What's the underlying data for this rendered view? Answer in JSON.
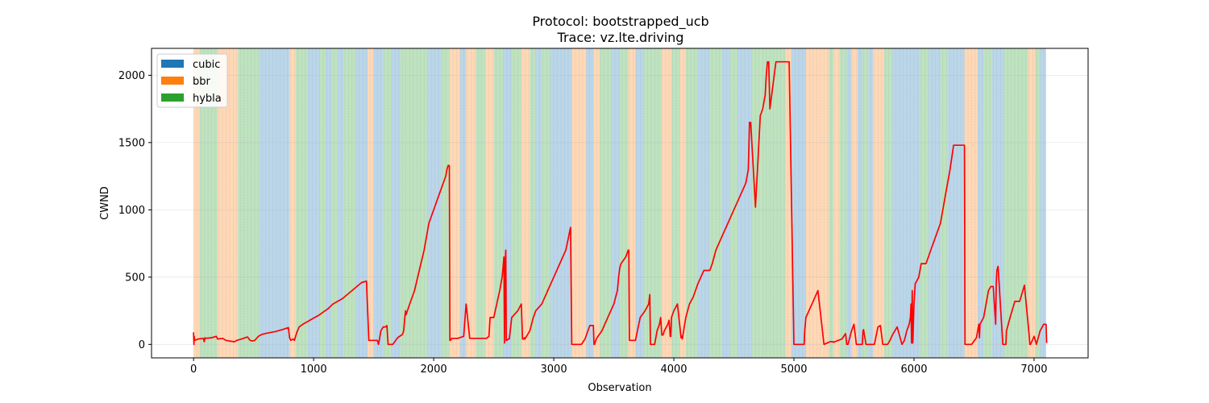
{
  "chart_data": {
    "type": "line",
    "title": "Protocol: bootstrapped_ucb",
    "subtitle": "Trace: vz.lte.driving",
    "xlabel": "Observation",
    "ylabel": "CWND",
    "xlim": [
      -350,
      7450
    ],
    "ylim": [
      -100,
      2200
    ],
    "xticks": [
      0,
      1000,
      2000,
      3000,
      4000,
      5000,
      6000,
      7000
    ],
    "yticks": [
      0,
      500,
      1000,
      1500,
      2000
    ],
    "grid": "horizontal",
    "legend_position": "top-left",
    "protocols": [
      {
        "name": "cubic",
        "color": "#1f77b4"
      },
      {
        "name": "bbr",
        "color": "#ff7f0e"
      },
      {
        "name": "hybla",
        "color": "#2ca02c"
      }
    ],
    "line_color": "#ff0000",
    "regions": [
      {
        "start": 0,
        "end": 50,
        "protocol": "bbr"
      },
      {
        "start": 50,
        "end": 200,
        "protocol": "hybla"
      },
      {
        "start": 200,
        "end": 370,
        "protocol": "bbr"
      },
      {
        "start": 370,
        "end": 550,
        "protocol": "hybla"
      },
      {
        "start": 550,
        "end": 800,
        "protocol": "cubic"
      },
      {
        "start": 800,
        "end": 850,
        "protocol": "bbr"
      },
      {
        "start": 850,
        "end": 950,
        "protocol": "hybla"
      },
      {
        "start": 950,
        "end": 1050,
        "protocol": "cubic"
      },
      {
        "start": 1050,
        "end": 1100,
        "protocol": "hybla"
      },
      {
        "start": 1100,
        "end": 1150,
        "protocol": "cubic"
      },
      {
        "start": 1150,
        "end": 1200,
        "protocol": "hybla"
      },
      {
        "start": 1200,
        "end": 1250,
        "protocol": "cubic"
      },
      {
        "start": 1250,
        "end": 1350,
        "protocol": "hybla"
      },
      {
        "start": 1350,
        "end": 1450,
        "protocol": "cubic"
      },
      {
        "start": 1450,
        "end": 1500,
        "protocol": "bbr"
      },
      {
        "start": 1500,
        "end": 1580,
        "protocol": "cubic"
      },
      {
        "start": 1580,
        "end": 1650,
        "protocol": "hybla"
      },
      {
        "start": 1650,
        "end": 1720,
        "protocol": "cubic"
      },
      {
        "start": 1720,
        "end": 1950,
        "protocol": "hybla"
      },
      {
        "start": 1950,
        "end": 2060,
        "protocol": "cubic"
      },
      {
        "start": 2060,
        "end": 2130,
        "protocol": "hybla"
      },
      {
        "start": 2130,
        "end": 2220,
        "protocol": "bbr"
      },
      {
        "start": 2220,
        "end": 2270,
        "protocol": "cubic"
      },
      {
        "start": 2270,
        "end": 2350,
        "protocol": "bbr"
      },
      {
        "start": 2350,
        "end": 2430,
        "protocol": "hybla"
      },
      {
        "start": 2430,
        "end": 2500,
        "protocol": "bbr"
      },
      {
        "start": 2500,
        "end": 2580,
        "protocol": "hybla"
      },
      {
        "start": 2580,
        "end": 2650,
        "protocol": "cubic"
      },
      {
        "start": 2650,
        "end": 2730,
        "protocol": "hybla"
      },
      {
        "start": 2730,
        "end": 2800,
        "protocol": "bbr"
      },
      {
        "start": 2800,
        "end": 2850,
        "protocol": "hybla"
      },
      {
        "start": 2850,
        "end": 2900,
        "protocol": "cubic"
      },
      {
        "start": 2900,
        "end": 2970,
        "protocol": "hybla"
      },
      {
        "start": 2970,
        "end": 3150,
        "protocol": "cubic"
      },
      {
        "start": 3150,
        "end": 3270,
        "protocol": "bbr"
      },
      {
        "start": 3270,
        "end": 3330,
        "protocol": "cubic"
      },
      {
        "start": 3330,
        "end": 3380,
        "protocol": "bbr"
      },
      {
        "start": 3380,
        "end": 3480,
        "protocol": "hybla"
      },
      {
        "start": 3480,
        "end": 3550,
        "protocol": "cubic"
      },
      {
        "start": 3550,
        "end": 3620,
        "protocol": "hybla"
      },
      {
        "start": 3620,
        "end": 3680,
        "protocol": "bbr"
      },
      {
        "start": 3680,
        "end": 3750,
        "protocol": "cubic"
      },
      {
        "start": 3750,
        "end": 3900,
        "protocol": "hybla"
      },
      {
        "start": 3900,
        "end": 3980,
        "protocol": "bbr"
      },
      {
        "start": 3980,
        "end": 4050,
        "protocol": "hybla"
      },
      {
        "start": 4050,
        "end": 4100,
        "protocol": "bbr"
      },
      {
        "start": 4100,
        "end": 4200,
        "protocol": "hybla"
      },
      {
        "start": 4200,
        "end": 4300,
        "protocol": "cubic"
      },
      {
        "start": 4300,
        "end": 4400,
        "protocol": "hybla"
      },
      {
        "start": 4400,
        "end": 4470,
        "protocol": "cubic"
      },
      {
        "start": 4470,
        "end": 4530,
        "protocol": "hybla"
      },
      {
        "start": 4530,
        "end": 4650,
        "protocol": "cubic"
      },
      {
        "start": 4650,
        "end": 4720,
        "protocol": "hybla"
      },
      {
        "start": 4720,
        "end": 4930,
        "protocol": "hybla"
      },
      {
        "start": 4930,
        "end": 4980,
        "protocol": "bbr"
      },
      {
        "start": 4980,
        "end": 5100,
        "protocol": "cubic"
      },
      {
        "start": 5100,
        "end": 5290,
        "protocol": "bbr"
      },
      {
        "start": 5290,
        "end": 5330,
        "protocol": "hybla"
      },
      {
        "start": 5330,
        "end": 5380,
        "protocol": "bbr"
      },
      {
        "start": 5380,
        "end": 5440,
        "protocol": "hybla"
      },
      {
        "start": 5440,
        "end": 5480,
        "protocol": "cubic"
      },
      {
        "start": 5480,
        "end": 5530,
        "protocol": "bbr"
      },
      {
        "start": 5530,
        "end": 5570,
        "protocol": "cubic"
      },
      {
        "start": 5570,
        "end": 5620,
        "protocol": "hybla"
      },
      {
        "start": 5620,
        "end": 5660,
        "protocol": "cubic"
      },
      {
        "start": 5660,
        "end": 5750,
        "protocol": "bbr"
      },
      {
        "start": 5750,
        "end": 5820,
        "protocol": "hybla"
      },
      {
        "start": 5820,
        "end": 6050,
        "protocol": "cubic"
      },
      {
        "start": 6050,
        "end": 6120,
        "protocol": "hybla"
      },
      {
        "start": 6120,
        "end": 6220,
        "protocol": "cubic"
      },
      {
        "start": 6220,
        "end": 6280,
        "protocol": "hybla"
      },
      {
        "start": 6280,
        "end": 6420,
        "protocol": "cubic"
      },
      {
        "start": 6420,
        "end": 6530,
        "protocol": "bbr"
      },
      {
        "start": 6530,
        "end": 6580,
        "protocol": "cubic"
      },
      {
        "start": 6580,
        "end": 6650,
        "protocol": "hybla"
      },
      {
        "start": 6650,
        "end": 6750,
        "protocol": "cubic"
      },
      {
        "start": 6750,
        "end": 6950,
        "protocol": "hybla"
      },
      {
        "start": 6950,
        "end": 7010,
        "protocol": "bbr"
      },
      {
        "start": 7010,
        "end": 7050,
        "protocol": "hybla"
      },
      {
        "start": 7050,
        "end": 7100,
        "protocol": "cubic"
      }
    ],
    "series": [
      {
        "x": [
          0,
          3,
          6,
          10,
          40,
          80,
          90,
          95,
          100,
          150,
          190,
          200,
          240,
          270,
          300,
          340,
          360,
          400,
          430,
          450,
          470,
          490,
          510,
          540,
          570,
          620,
          680,
          740,
          790,
          800,
          810,
          830,
          840,
          860,
          880,
          910,
          940,
          980,
          1010,
          1040,
          1080,
          1120,
          1160,
          1200,
          1240,
          1280,
          1320,
          1360,
          1400,
          1440,
          1460,
          1465,
          1500,
          1530,
          1540,
          1550,
          1560,
          1580,
          1600,
          1610,
          1620,
          1640,
          1650,
          1660,
          1700,
          1740,
          1750,
          1760,
          1765,
          1770,
          1800,
          1840,
          1880,
          1920,
          1960,
          2000,
          2040,
          2060,
          2080,
          2100,
          2110,
          2120,
          2130,
          2135,
          2140,
          2150,
          2200,
          2250,
          2270,
          2300,
          2360,
          2420,
          2440,
          2460,
          2470,
          2500,
          2550,
          2570,
          2580,
          2585,
          2590,
          2595,
          2600,
          2605,
          2610,
          2620,
          2630,
          2650,
          2700,
          2730,
          2740,
          2750,
          2755,
          2760,
          2800,
          2830,
          2850,
          2900,
          2950,
          3000,
          3050,
          3100,
          3140,
          3150,
          3155,
          3200,
          3230,
          3260,
          3300,
          3330,
          3335,
          3340,
          3350,
          3360,
          3400,
          3450,
          3500,
          3530,
          3540,
          3550,
          3560,
          3600,
          3620,
          3625,
          3630,
          3680,
          3720,
          3760,
          3790,
          3800,
          3805,
          3810,
          3840,
          3860,
          3880,
          3890,
          3900,
          3910,
          3920,
          3950,
          3960,
          3970,
          3975,
          3980,
          4000,
          4030,
          4060,
          4065,
          4070,
          4100,
          4130,
          4160,
          4180,
          4200,
          4250,
          4300,
          4320,
          4350,
          4400,
          4450,
          4500,
          4550,
          4600,
          4620,
          4625,
          4630,
          4640,
          4680,
          4720,
          4740,
          4760,
          4770,
          4780,
          4790,
          4800,
          4850,
          4920,
          4940,
          4945,
          4950,
          4960,
          5000,
          5050,
          5080,
          5085,
          5090,
          5100,
          5150,
          5200,
          5250,
          5300,
          5320,
          5325,
          5330,
          5340,
          5400,
          5430,
          5440,
          5445,
          5450,
          5480,
          5500,
          5520,
          5540,
          5560,
          5570,
          5575,
          5580,
          5600,
          5640,
          5660,
          5665,
          5670,
          5700,
          5720,
          5740,
          5760,
          5780,
          5800,
          5820,
          5840,
          5860,
          5900,
          5920,
          5940,
          5960,
          5970,
          5975,
          5980,
          5985,
          5990,
          6000,
          6010,
          6040,
          6060,
          6100,
          6140,
          6180,
          6220,
          6260,
          6300,
          6330,
          6360,
          6400,
          6420,
          6425,
          6430,
          6480,
          6520,
          6540,
          6545,
          6550,
          6580,
          6600,
          6620,
          6640,
          6660,
          6680,
          6685,
          6690,
          6700,
          6740,
          6760,
          6765,
          6770,
          6800,
          6840,
          6880,
          6900,
          6920,
          6960,
          6965,
          6970,
          7000,
          7020,
          7050,
          7080,
          7100,
          7105
        ],
        "y": [
          90,
          0,
          60,
          30,
          40,
          45,
          20,
          50,
          45,
          50,
          60,
          40,
          45,
          30,
          25,
          20,
          30,
          40,
          50,
          55,
          30,
          25,
          30,
          60,
          75,
          85,
          95,
          110,
          125,
          50,
          30,
          40,
          30,
          90,
          130,
          150,
          165,
          185,
          200,
          215,
          240,
          265,
          300,
          320,
          340,
          370,
          400,
          430,
          460,
          470,
          30,
          30,
          30,
          30,
          0,
          50,
          100,
          130,
          130,
          140,
          0,
          0,
          0,
          0,
          50,
          75,
          100,
          200,
          250,
          220,
          300,
          400,
          550,
          700,
          900,
          1000,
          1100,
          1150,
          1200,
          1250,
          1300,
          1330,
          1330,
          30,
          30,
          45,
          45,
          60,
          300,
          45,
          45,
          45,
          45,
          60,
          200,
          200,
          400,
          500,
          600,
          650,
          10,
          600,
          700,
          30,
          30,
          40,
          40,
          200,
          250,
          300,
          40,
          40,
          50,
          40,
          100,
          200,
          250,
          300,
          400,
          500,
          600,
          700,
          870,
          0,
          0,
          0,
          0,
          40,
          140,
          140,
          0,
          0,
          30,
          50,
          100,
          200,
          300,
          400,
          500,
          570,
          600,
          650,
          700,
          700,
          30,
          30,
          200,
          250,
          300,
          370,
          0,
          0,
          0,
          100,
          150,
          200,
          70,
          70,
          100,
          150,
          180,
          60,
          60,
          200,
          250,
          300,
          50,
          60,
          40,
          200,
          300,
          350,
          400,
          450,
          550,
          550,
          600,
          700,
          800,
          900,
          1000,
          1100,
          1200,
          1300,
          1450,
          1650,
          1650,
          1020,
          1700,
          1750,
          1850,
          2000,
          2100,
          2100,
          1750,
          2100,
          2100,
          2100,
          2100,
          2100,
          2100,
          0,
          0,
          0,
          0,
          100,
          200,
          300,
          400,
          0,
          20,
          20,
          20,
          15,
          20,
          40,
          80,
          0,
          0,
          0,
          100,
          150,
          0,
          0,
          0,
          0,
          100,
          110,
          0,
          0,
          0,
          0,
          0,
          130,
          140,
          0,
          0,
          0,
          30,
          70,
          100,
          130,
          0,
          30,
          100,
          150,
          200,
          300,
          10,
          400,
          10,
          300,
          450,
          500,
          600,
          600,
          700,
          800,
          900,
          1100,
          1300,
          1480,
          1480,
          1480,
          1480,
          0,
          0,
          0,
          50,
          150,
          50,
          150,
          200,
          300,
          400,
          430,
          430,
          150,
          450,
          550,
          580,
          0,
          0,
          0,
          100,
          200,
          320,
          320,
          380,
          440,
          60,
          0,
          0,
          60,
          0,
          100,
          150,
          150,
          10
        ]
      }
    ]
  }
}
